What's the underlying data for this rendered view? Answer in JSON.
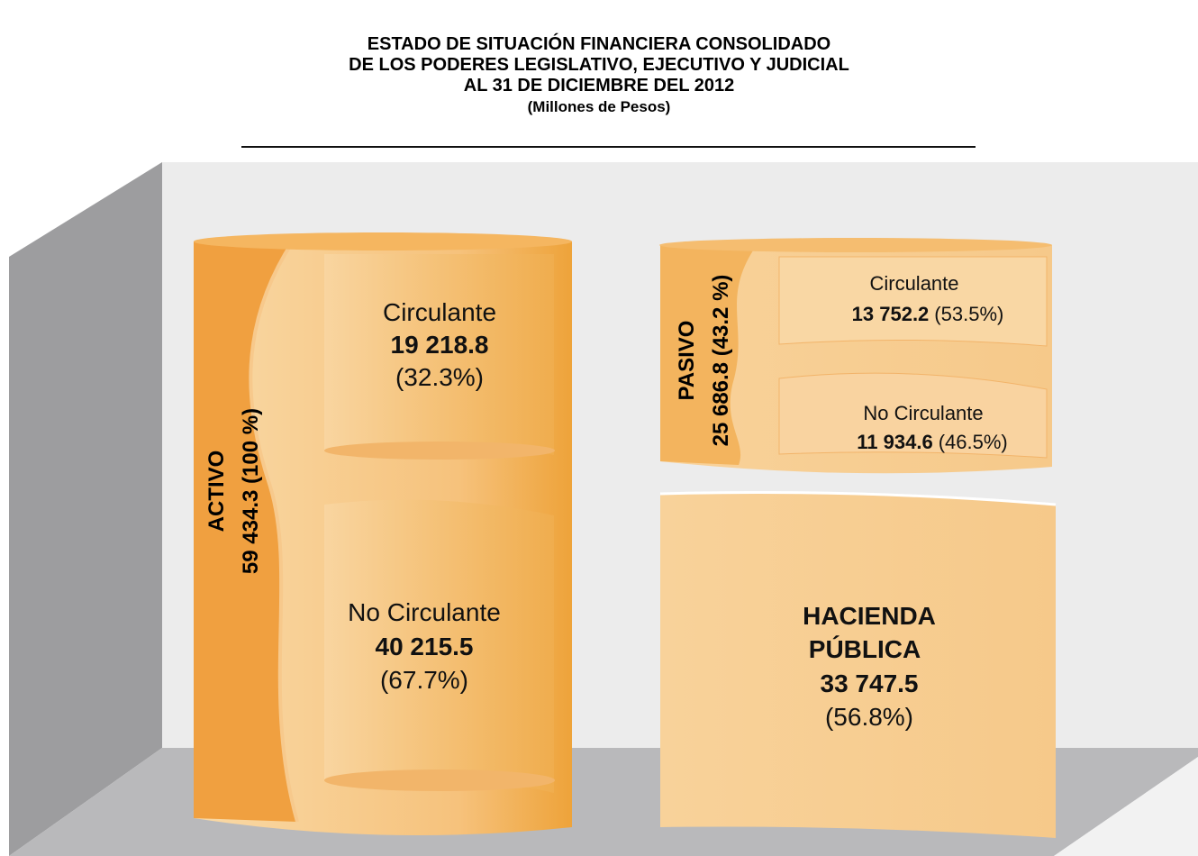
{
  "header": {
    "title": [
      "ESTADO DE SITUACIÓN FINANCIERA CONSOLIDADO",
      "DE LOS PODERES LEGISLATIVO, EJECUTIVO Y JUDICIAL",
      "AL 31 DE DICIEMBRE DEL 2012"
    ],
    "subtitle": "(Millones de Pesos)"
  },
  "activo": {
    "label": "ACTIVO",
    "total": "59 434.3 (100 %)",
    "circulante": {
      "label": "Circulante",
      "value": "19 218.8",
      "share": "(32.3%)"
    },
    "no_circulante": {
      "label": "No Circulante",
      "value": "40 215.5",
      "share": "(67.7%)"
    }
  },
  "pasivo": {
    "label": "PASIVO",
    "total": "25 686.8 (43.2 %)",
    "circulante": {
      "label": "Circulante",
      "value": "13 752.2",
      "share": "(53.5%)"
    },
    "no_circulante": {
      "label": "No Circulante",
      "value": "11 934.6",
      "share": "(46.5%)"
    }
  },
  "hacienda": {
    "label": [
      "HACIENDA",
      "PÚBLICA"
    ],
    "value": "33 747.5",
    "share": "(56.8%)"
  }
}
